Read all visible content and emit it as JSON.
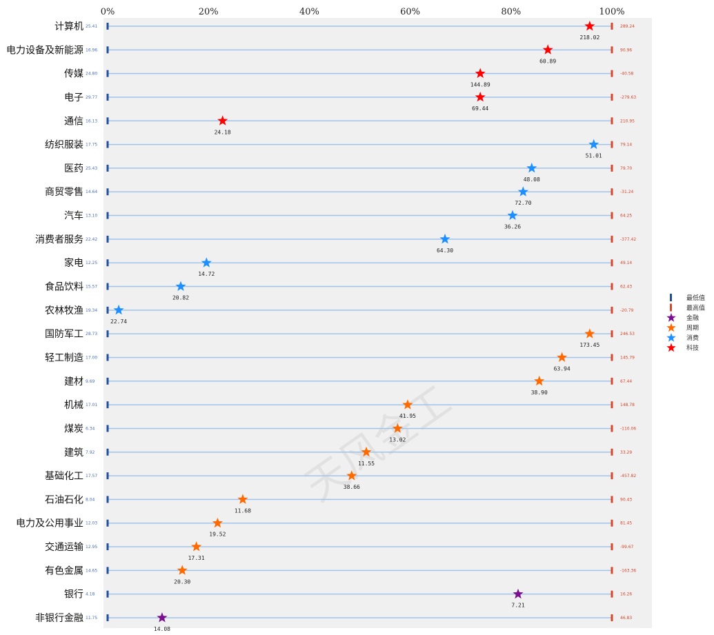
{
  "chart_data": {
    "type": "scatter",
    "title": "",
    "x_axis": {
      "ticks": [
        "0%",
        "20%",
        "40%",
        "60%",
        "80%",
        "100%"
      ],
      "range": [
        0,
        100
      ],
      "position": "top"
    },
    "categories": [
      "计算机",
      "电力设备及新能源",
      "传媒",
      "电子",
      "通信",
      "纺织服装",
      "医药",
      "商贸零售",
      "汽车",
      "消费者服务",
      "家电",
      "食品饮料",
      "农林牧渔",
      "国防军工",
      "轻工制造",
      "建材",
      "机械",
      "煤炭",
      "建筑",
      "基础化工",
      "石油石化",
      "电力及公用事业",
      "交通运输",
      "有色金属",
      "银行",
      "非银行金融"
    ],
    "min_values": [
      "25.41",
      "16.96",
      "24.80",
      "29.77",
      "16.13",
      "17.75",
      "25.43",
      "14.64",
      "13.10",
      "22.42",
      "12.25",
      "15.57",
      "19.34",
      "28.73",
      "17.00",
      "9.69",
      "17.01",
      "6.34",
      "7.92",
      "17.57",
      "8.04",
      "12.03",
      "12.95",
      "14.65",
      "4.18",
      "11.75"
    ],
    "max_values": [
      "289.24",
      "90.96",
      "-40.58",
      "-279.63",
      "210.95",
      "79.14",
      "79.70",
      "-31.24",
      "64.25",
      "-377.42",
      "49.14",
      "62.43",
      "-20.79",
      "246.53",
      "145.79",
      "67.44",
      "148.78",
      "-110.06",
      "33.29",
      "-457.82",
      "90.43",
      "81.45",
      "-99.67",
      "-163.36",
      "16.26",
      "46.83"
    ],
    "current_values": [
      "218.02",
      "60.89",
      "144.89",
      "69.44",
      "24.18",
      "51.01",
      "48.08",
      "72.70",
      "36.26",
      "64.30",
      "14.72",
      "20.82",
      "22.74",
      "173.45",
      "63.94",
      "38.90",
      "41.95",
      "13.02",
      "11.55",
      "38.66",
      "11.68",
      "19.52",
      "17.31",
      "20.30",
      "7.21",
      "14.08"
    ],
    "percentile": [
      95.6,
      87.3,
      73.9,
      73.9,
      22.8,
      96.4,
      84.1,
      82.4,
      80.3,
      66.9,
      19.6,
      14.5,
      2.2,
      95.6,
      90.1,
      85.6,
      59.5,
      57.5,
      51.3,
      48.4,
      26.8,
      21.8,
      17.6,
      14.8,
      81.4,
      10.8
    ],
    "group": [
      "科技",
      "科技",
      "科技",
      "科技",
      "科技",
      "消费",
      "消费",
      "消费",
      "消费",
      "消费",
      "消费",
      "消费",
      "消费",
      "周期",
      "周期",
      "周期",
      "周期",
      "周期",
      "周期",
      "周期",
      "周期",
      "周期",
      "周期",
      "周期",
      "金融",
      "金融"
    ],
    "legend": {
      "position": "right",
      "items": [
        {
          "label": "最低值",
          "marker": "bar",
          "color": "#1f4e9c"
        },
        {
          "label": "最高值",
          "marker": "bar",
          "color": "#d9462b"
        },
        {
          "label": "金融",
          "marker": "star",
          "color": "#7b0f8f"
        },
        {
          "label": "周期",
          "marker": "star",
          "color": "#ff6a00"
        },
        {
          "label": "消费",
          "marker": "star",
          "color": "#1e8fff"
        },
        {
          "label": "科技",
          "marker": "star",
          "color": "#ff0000"
        }
      ]
    },
    "colors": {
      "line": "#9fc3ea",
      "background": "#f0f0f0",
      "min_text": "#4a6fb0",
      "max_text": "#d9462b"
    },
    "watermark": "天风金工",
    "grid": false
  }
}
